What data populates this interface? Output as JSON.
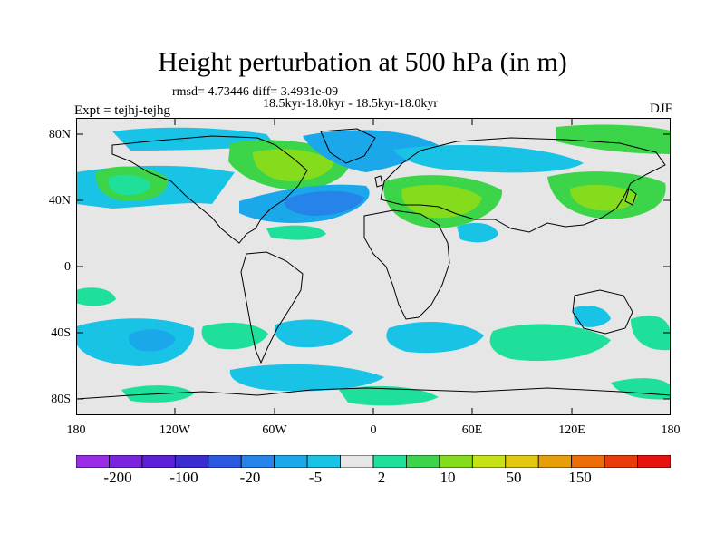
{
  "title": "Height perturbation at 500 hPa (in m)",
  "stats": "rmsd= 4.73446 diff= 3.4931e-09",
  "period": "18.5kyr-18.0kyr - 18.5kyr-18.0kyr",
  "experiment": "Expt = tejhj-tejhg",
  "season": "DJF",
  "lat_labels": [
    "80N",
    "40N",
    "0",
    "40S",
    "80S"
  ],
  "lon_labels": [
    "180",
    "120W",
    "60W",
    "0",
    "60E",
    "120E",
    "180"
  ],
  "colorbar": {
    "colors": [
      "#9a2be6",
      "#7a24e0",
      "#5a1fd6",
      "#3a2cd0",
      "#2b58e0",
      "#2683ea",
      "#1aa8ea",
      "#18c3e6",
      "#e6e6e6",
      "#1fe09a",
      "#3cd54a",
      "#84dc1c",
      "#c6e214",
      "#e2c80e",
      "#e89e08",
      "#ec6c08",
      "#e83a0a",
      "#e8120c"
    ],
    "labels": [
      "-200",
      "-100",
      "-20",
      "-5",
      "2",
      "10",
      "50",
      "150"
    ]
  },
  "chart_data": {
    "type": "heatmap",
    "title": "Height perturbation at 500 hPa (in m)",
    "variable": "500 hPa geopotential height perturbation",
    "units": "m",
    "season": "DJF",
    "lon_range": [
      -180,
      180
    ],
    "lat_range": [
      -90,
      90
    ],
    "contour_levels": [
      -200,
      -100,
      -20,
      -5,
      2,
      10,
      50,
      150
    ],
    "features": [
      {
        "region": "Central North Atlantic",
        "sign": "negative",
        "approx_value": -10
      },
      {
        "region": "Europe / Mediterranean",
        "sign": "positive",
        "approx_value": 10
      },
      {
        "region": "Northern Canada / Greenland",
        "sign": "positive",
        "approx_value": 10
      },
      {
        "region": "East Asia / Japan",
        "sign": "positive",
        "approx_value": 8
      },
      {
        "region": "North Pacific",
        "sign": "positive",
        "approx_value": 5
      },
      {
        "region": "Southern Ocean (Pacific sector)",
        "sign": "negative",
        "approx_value": -5
      },
      {
        "region": "South Atlantic",
        "sign": "positive",
        "approx_value": 5
      }
    ]
  }
}
